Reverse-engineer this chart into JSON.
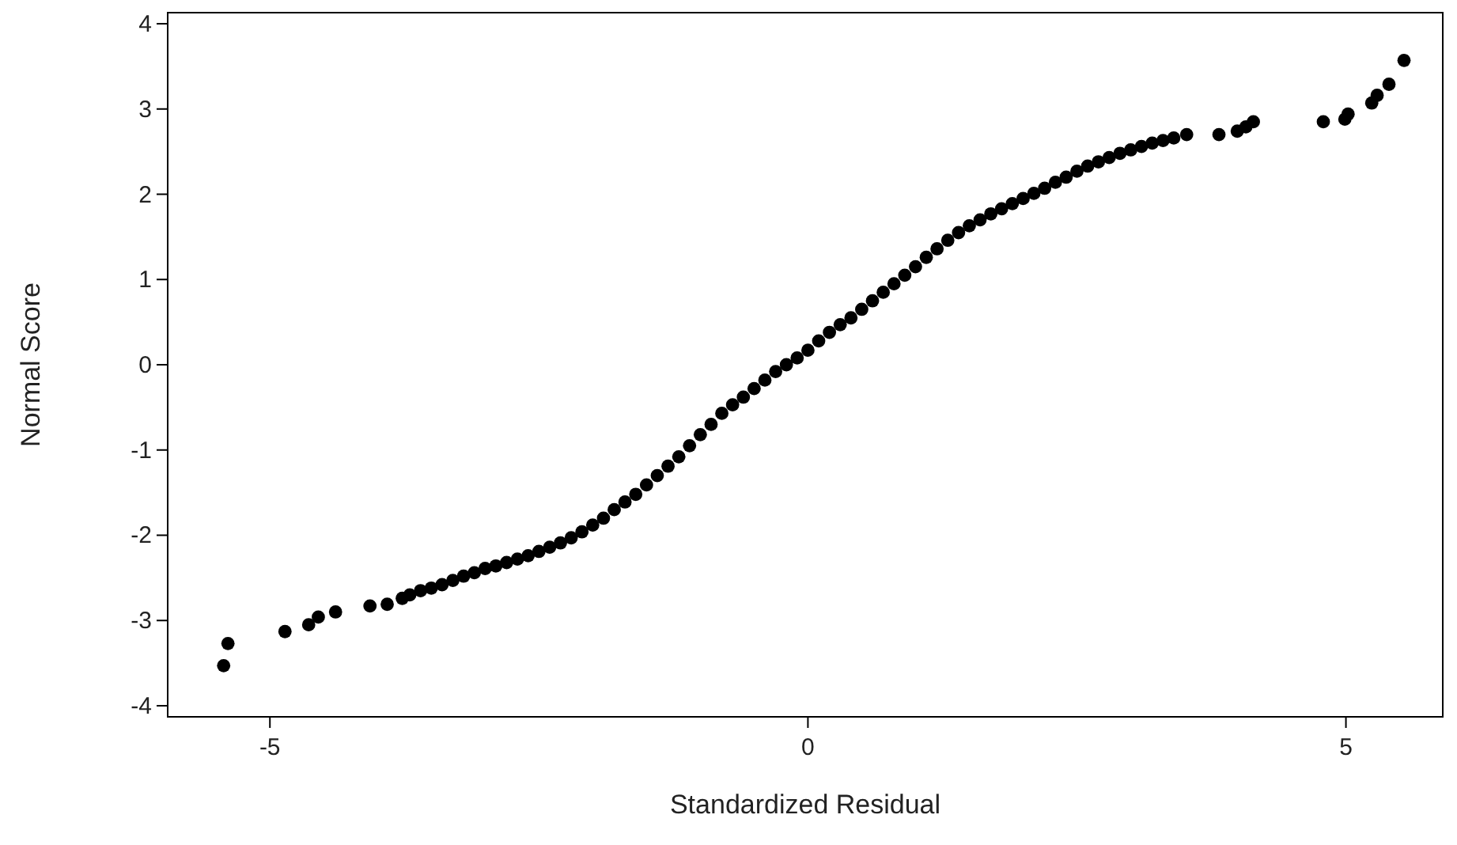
{
  "chart_data": {
    "type": "scatter",
    "xlabel": "Standardized Residual",
    "ylabel": "Normal Score",
    "xlim": [
      -5.95,
      5.9
    ],
    "ylim": [
      -4.13,
      4.13
    ],
    "xticks": [
      -5,
      0,
      5
    ],
    "yticks": [
      -4,
      -3,
      -2,
      -1,
      0,
      1,
      2,
      3,
      4
    ],
    "grid": false,
    "marker": "circle",
    "series": [
      {
        "color": "#000000",
        "x": [
          -5.43,
          -5.39,
          -4.86,
          -4.64,
          -4.55,
          -4.39,
          -4.07,
          -3.91,
          -3.77,
          -3.7,
          -3.6,
          -3.5,
          -3.4,
          -3.3,
          -3.2,
          -3.1,
          -3.0,
          -2.9,
          -2.8,
          -2.7,
          -2.6,
          -2.5,
          -2.4,
          -2.3,
          -2.2,
          -2.1,
          -2.0,
          -1.9,
          -1.8,
          -1.7,
          -1.6,
          -1.5,
          -1.4,
          -1.3,
          -1.2,
          -1.1,
          -1.0,
          -0.9,
          -0.8,
          -0.7,
          -0.6,
          -0.5,
          -0.4,
          -0.3,
          -0.2,
          -0.1,
          0.0,
          0.1,
          0.2,
          0.3,
          0.4,
          0.5,
          0.6,
          0.7,
          0.8,
          0.9,
          1.0,
          1.1,
          1.2,
          1.3,
          1.4,
          1.5,
          1.6,
          1.7,
          1.8,
          1.9,
          2.0,
          2.1,
          2.2,
          2.3,
          2.4,
          2.5,
          2.6,
          2.7,
          2.8,
          2.9,
          3.0,
          3.1,
          3.2,
          3.3,
          3.4,
          3.52,
          3.82,
          3.99,
          4.07,
          4.14,
          4.79,
          4.99,
          5.02,
          5.24,
          5.29,
          5.4,
          5.54
        ],
        "values": [
          -3.53,
          -3.27,
          -3.13,
          -3.05,
          -2.96,
          -2.9,
          -2.83,
          -2.81,
          -2.74,
          -2.7,
          -2.65,
          -2.62,
          -2.58,
          -2.53,
          -2.48,
          -2.44,
          -2.39,
          -2.36,
          -2.32,
          -2.28,
          -2.24,
          -2.19,
          -2.14,
          -2.09,
          -2.03,
          -1.96,
          -1.88,
          -1.8,
          -1.7,
          -1.61,
          -1.52,
          -1.41,
          -1.3,
          -1.19,
          -1.08,
          -0.95,
          -0.82,
          -0.7,
          -0.57,
          -0.47,
          -0.38,
          -0.28,
          -0.18,
          -0.08,
          0.0,
          0.08,
          0.17,
          0.28,
          0.38,
          0.47,
          0.55,
          0.65,
          0.75,
          0.85,
          0.95,
          1.05,
          1.15,
          1.26,
          1.36,
          1.46,
          1.55,
          1.63,
          1.7,
          1.77,
          1.83,
          1.89,
          1.95,
          2.01,
          2.07,
          2.14,
          2.2,
          2.27,
          2.33,
          2.38,
          2.43,
          2.48,
          2.52,
          2.56,
          2.6,
          2.63,
          2.66,
          2.7,
          2.7,
          2.74,
          2.79,
          2.85,
          2.85,
          2.88,
          2.94,
          3.07,
          3.16,
          3.29,
          3.57
        ]
      }
    ]
  }
}
